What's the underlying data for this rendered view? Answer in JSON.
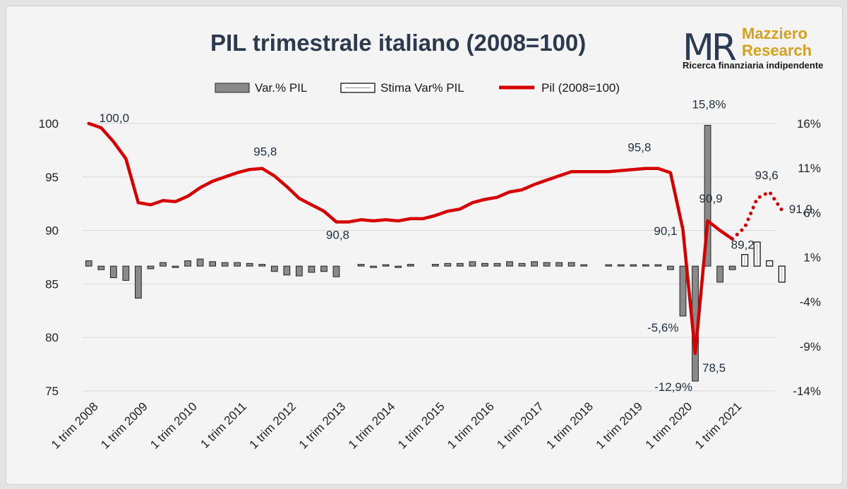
{
  "colors": {
    "pil_line": "#d60000",
    "bar_fill": "#8a8a8a",
    "bar_stroke": "#222222",
    "estimate_fill": "#ffffff",
    "title": "#2d3a4e",
    "brand_gold": "#d4a21a"
  },
  "logo": {
    "mark": "MR",
    "name_line1": "Mazziero",
    "name_line2": "Research",
    "tagline": "Ricerca finanziaria indipendente"
  },
  "chart_data": {
    "type": "line+bar",
    "title": "PIL trimestrale italiano (2008=100)",
    "legend": [
      "Var.% PIL",
      "Stima Var% PIL",
      "Pil (2008=100)"
    ],
    "legend_position": "top",
    "grid": true,
    "left_axis": {
      "ylim": [
        75,
        100
      ],
      "ticks": [
        75,
        80,
        85,
        90,
        95,
        100
      ]
    },
    "right_axis": {
      "ylim": [
        -14,
        16
      ],
      "ticks": [
        "-14%",
        "-9%",
        "-4%",
        "1%",
        "6%",
        "11%",
        "16%"
      ]
    },
    "x_tick_labels": [
      "1 trim 2008",
      "1 trim 2009",
      "1 trim 2010",
      "1 trim 2011",
      "1 trim 2012",
      "1 trim 2013",
      "1 trim 2014",
      "1 trim 2015",
      "1 trim 2016",
      "1 trim 2017",
      "1 trim 2018",
      "1 trim 2019",
      "1 trim 2020",
      "1 trim 2021"
    ],
    "quarters": 56,
    "series": [
      {
        "name": "Pil (2008=100)",
        "kind": "line",
        "values": [
          100.0,
          99.6,
          98.3,
          96.7,
          92.6,
          92.4,
          92.8,
          92.7,
          93.2,
          94.0,
          94.6,
          95.0,
          95.4,
          95.7,
          95.8,
          95.1,
          94.1,
          93.0,
          92.4,
          91.8,
          90.8,
          90.8,
          91.0,
          90.9,
          91.0,
          90.9,
          91.1,
          91.1,
          91.4,
          91.8,
          92.0,
          92.6,
          92.9,
          93.1,
          93.6,
          93.8,
          94.3,
          94.7,
          95.1,
          95.5,
          95.5,
          95.5,
          95.5,
          95.6,
          95.7,
          95.8,
          95.8,
          95.4,
          90.1,
          78.5,
          90.9,
          90.0,
          89.2
        ]
      },
      {
        "name": "Pil (2008=100) stima",
        "kind": "line-dotted",
        "start_index": 52,
        "values": [
          89.2,
          90.3,
          93.0,
          93.6,
          91.9
        ]
      },
      {
        "name": "Var.% PIL",
        "kind": "bar",
        "values": [
          0.6,
          -0.4,
          -1.3,
          -1.6,
          -3.6,
          -0.3,
          0.4,
          -0.1,
          0.6,
          0.8,
          0.5,
          0.4,
          0.4,
          0.3,
          0.2,
          -0.6,
          -1.0,
          -1.1,
          -0.7,
          -0.6,
          -1.2,
          null,
          0.2,
          -0.1,
          0.1,
          -0.1,
          0.2,
          null,
          0.2,
          0.3,
          0.3,
          0.5,
          0.3,
          0.3,
          0.5,
          0.3,
          0.5,
          0.4,
          0.4,
          0.4,
          0.0,
          null,
          0.0,
          0.1,
          0.1,
          0.1,
          0.1,
          -0.4,
          -5.6,
          -12.9,
          15.8,
          -1.8,
          -0.4
        ]
      },
      {
        "name": "Stima Var% PIL",
        "kind": "bar",
        "start_index": 53,
        "values": [
          1.3,
          2.7,
          0.6,
          -1.8
        ]
      }
    ],
    "annotations": [
      {
        "text": "100,0",
        "index": 0
      },
      {
        "text": "95,8",
        "index": 14
      },
      {
        "text": "90,8",
        "index": 20
      },
      {
        "text": "95,8",
        "index": 46
      },
      {
        "text": "90,1",
        "index": 48
      },
      {
        "text": "78,5",
        "index": 49
      },
      {
        "text": "90,9",
        "index": 50
      },
      {
        "text": "89,2",
        "index": 52
      },
      {
        "text": "93,6",
        "index": 55
      },
      {
        "text": "91,9",
        "index": 56
      },
      {
        "text": "-5,6%",
        "index": 48
      },
      {
        "text": "-12,9%",
        "index": 49
      },
      {
        "text": "15,8%",
        "index": 50
      }
    ]
  }
}
